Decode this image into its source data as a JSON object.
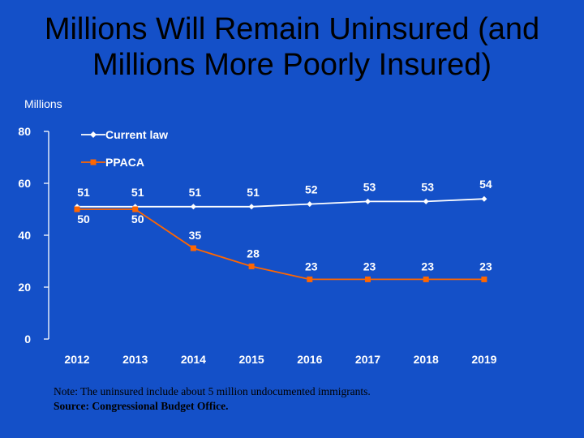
{
  "title": {
    "line1": "Millions Will Remain Uninsured (and",
    "line2": "Millions More Poorly Insured)"
  },
  "chart_data": {
    "type": "line",
    "ylabel": "Millions",
    "xlabel": "",
    "x": [
      "2012",
      "2013",
      "2014",
      "2015",
      "2016",
      "2017",
      "2018",
      "2019"
    ],
    "ylim": [
      0,
      80
    ],
    "yticks": [
      "0",
      "20",
      "40",
      "60",
      "80"
    ],
    "grid": false,
    "legend": "top-left",
    "series": [
      {
        "name": "Current law",
        "values": [
          51,
          51,
          51,
          51,
          52,
          53,
          53,
          54
        ],
        "color": "#ffffff",
        "marker": "diamond"
      },
      {
        "name": "PPACA",
        "values": [
          50,
          50,
          35,
          28,
          23,
          23,
          23,
          23
        ],
        "color": "#ff6600",
        "marker": "square"
      }
    ]
  },
  "note": {
    "line1": "Note: The uninsured include about 5 million undocumented immigrants.",
    "line2": "Source: Congressional Budget Office."
  },
  "colors": {
    "background": "#1450c8",
    "axis": "#ffffff",
    "labels": "#ffffff",
    "title": "#000000"
  }
}
